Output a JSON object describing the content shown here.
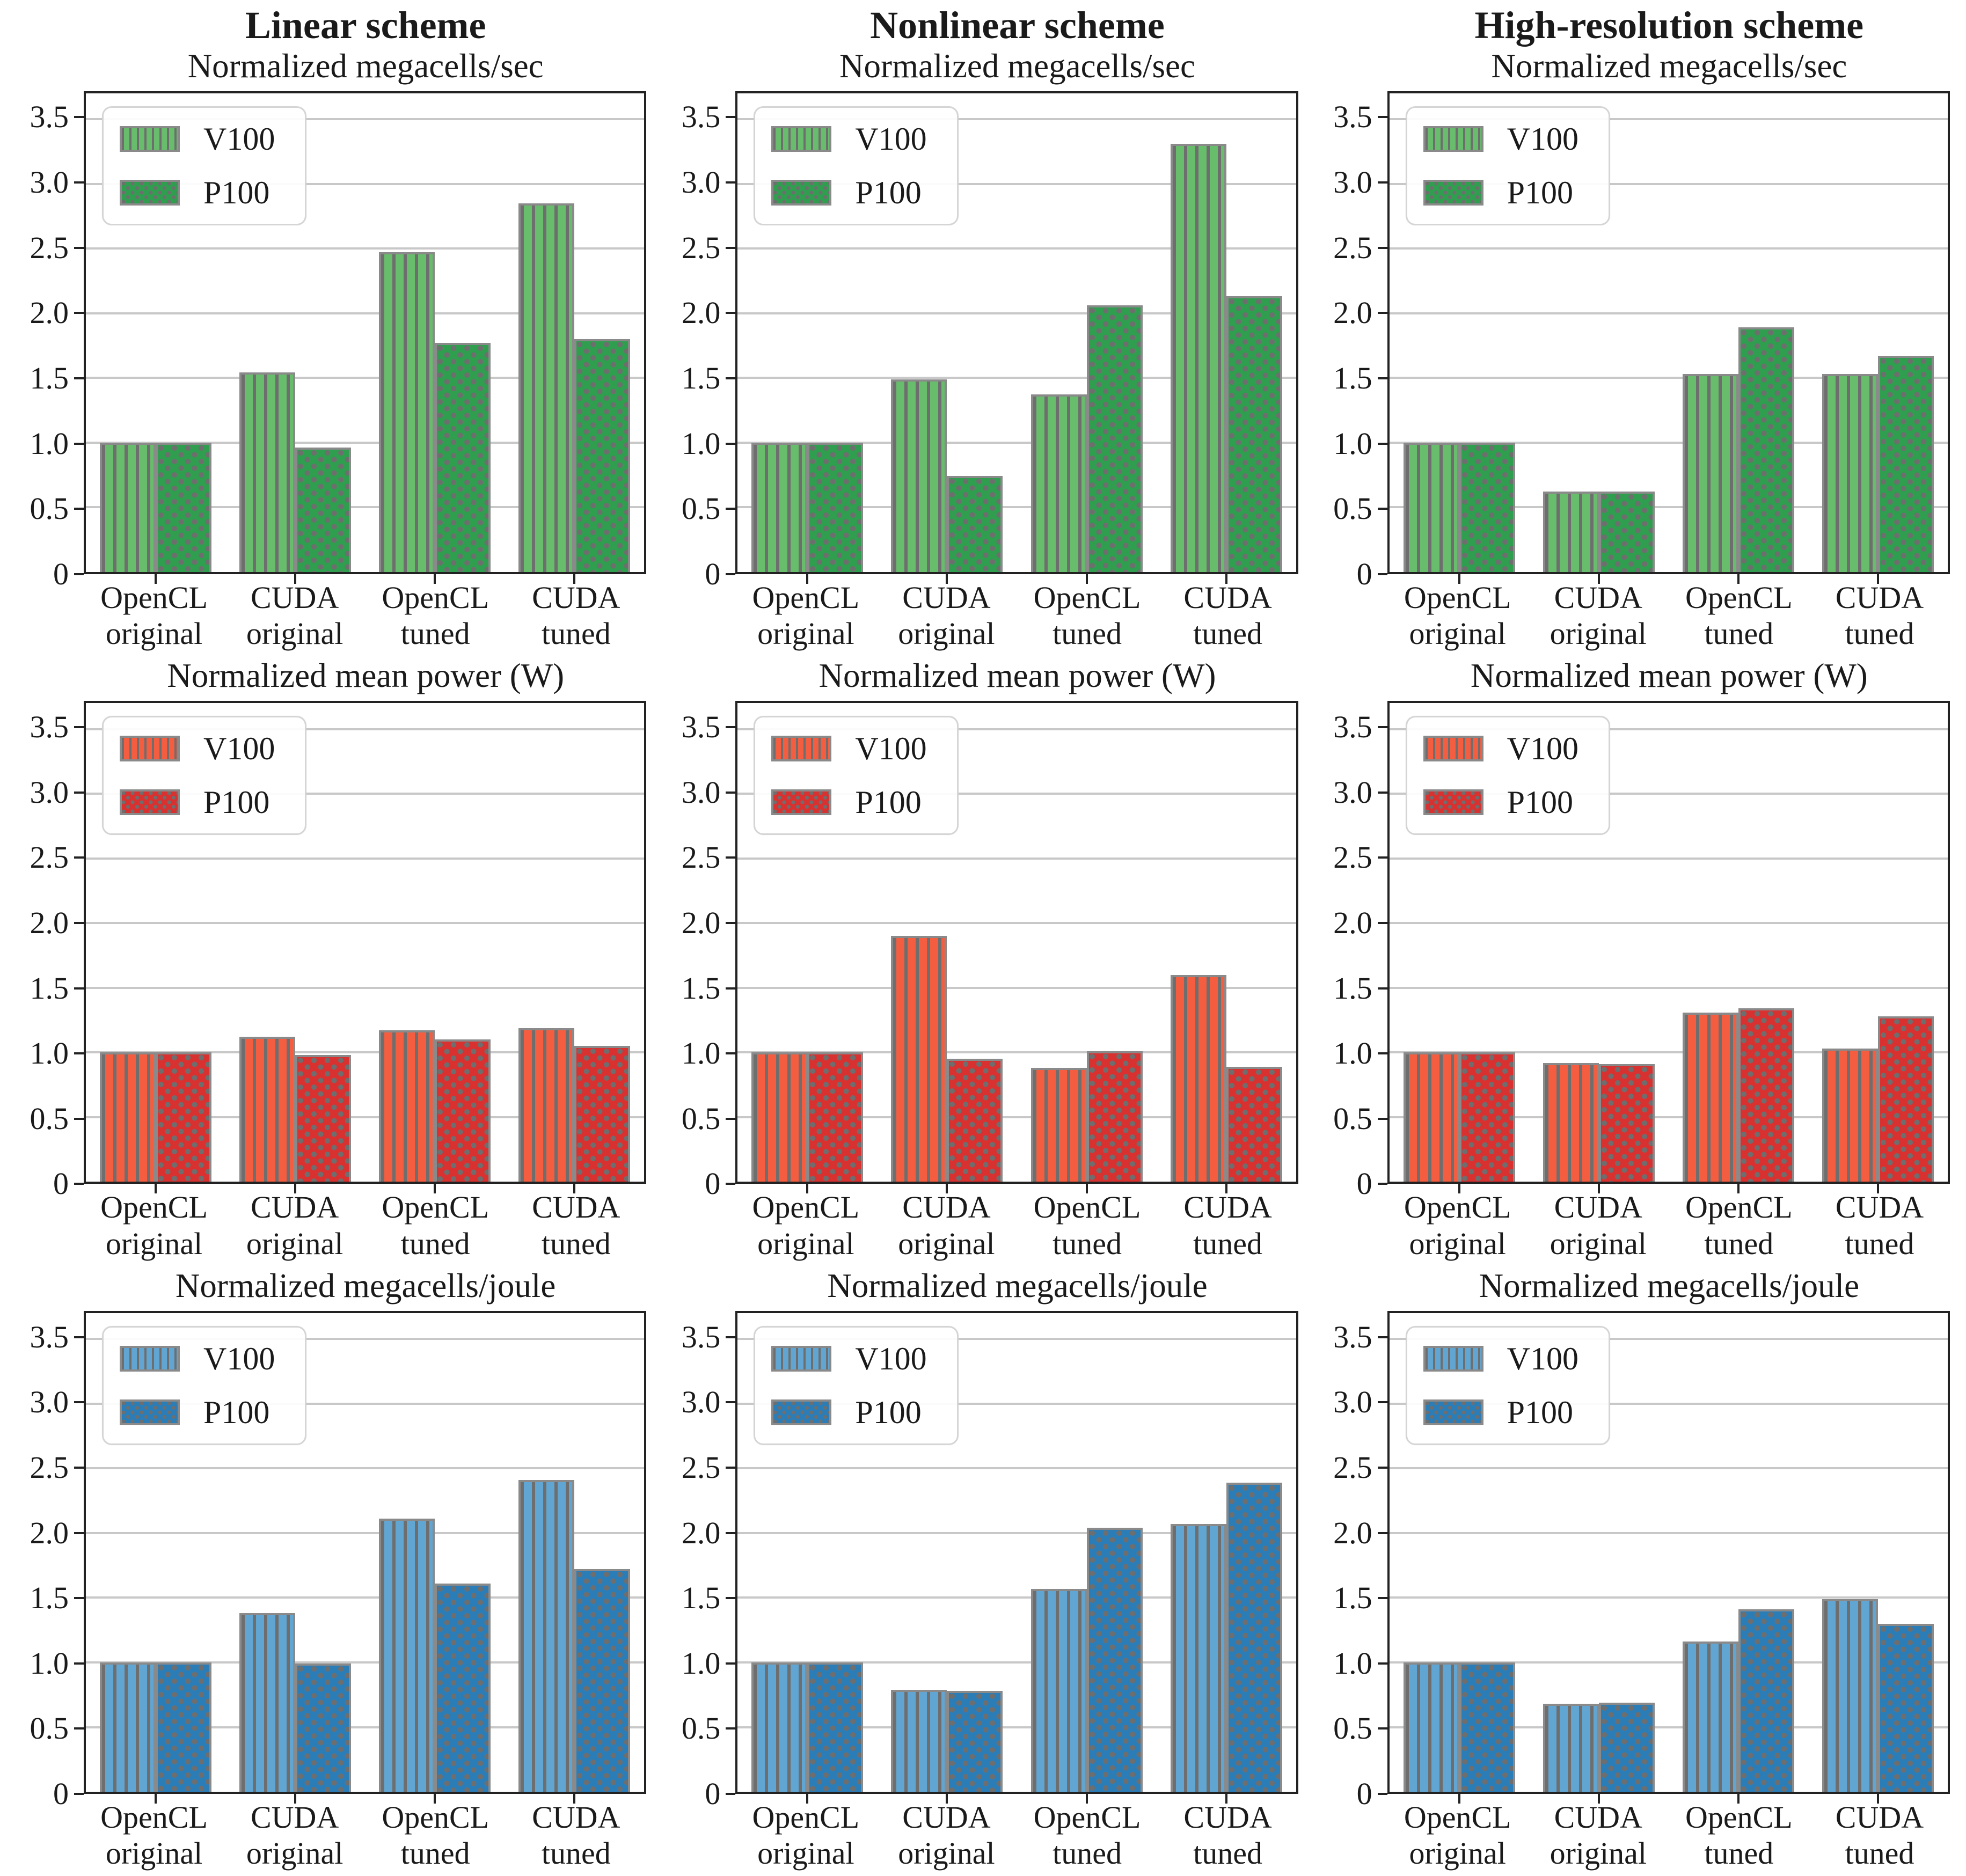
{
  "figure": {
    "columns": [
      "Linear scheme",
      "Nonlinear scheme",
      "High-resolution scheme"
    ],
    "rows": [
      "Normalized megacells/sec",
      "Normalized mean power (W)",
      "Normalized megacells/joule"
    ]
  },
  "legend": {
    "items": [
      "V100",
      "P100"
    ]
  },
  "axes": {
    "ymax": 3.7,
    "yticks": [
      {
        "label": "0",
        "value": 0
      },
      {
        "label": "0.5",
        "value": 0.5
      },
      {
        "label": "1.0",
        "value": 1.0
      },
      {
        "label": "1.5",
        "value": 1.5
      },
      {
        "label": "2.0",
        "value": 2.0
      },
      {
        "label": "2.5",
        "value": 2.5
      },
      {
        "label": "3.0",
        "value": 3.0
      },
      {
        "label": "3.5",
        "value": 3.5
      }
    ],
    "gridlines": [
      0.5,
      1.0,
      1.5,
      2.0,
      2.5,
      3.0,
      3.5
    ],
    "category_lines": [
      [
        "OpenCL",
        "original"
      ],
      [
        "CUDA",
        "original"
      ],
      [
        "OpenCL",
        "tuned"
      ],
      [
        "CUDA",
        "tuned"
      ]
    ]
  },
  "colors": {
    "green_v100": "#67bd6b",
    "green_p100": "#2f9e4f",
    "red_v100": "#f45d40",
    "red_p100": "#d93030",
    "blue_v100": "#61a6d3",
    "blue_p100": "#2b7db8",
    "hatch": "#6e6e6e",
    "bar_edge": "#8a8a8a",
    "grid": "#c8c8c8",
    "spine": "#222222",
    "legend_border": "#d5d5d5",
    "text": "#1a1a1a"
  },
  "chart_data": [
    {
      "type": "bar",
      "scheme_title": "Linear scheme",
      "title": "Normalized megacells/sec",
      "categories": [
        "OpenCL original",
        "CUDA original",
        "OpenCL tuned",
        "CUDA tuned"
      ],
      "series": [
        {
          "name": "V100",
          "color_key": "green_v100",
          "values": [
            1.0,
            1.54,
            2.47,
            2.85
          ]
        },
        {
          "name": "P100",
          "color_key": "green_p100",
          "values": [
            1.0,
            0.96,
            1.77,
            1.8
          ]
        }
      ],
      "ylim": [
        0,
        3.7
      ],
      "legend_position": "upper left",
      "grid": true
    },
    {
      "type": "bar",
      "scheme_title": "Nonlinear scheme",
      "title": "Normalized megacells/sec",
      "categories": [
        "OpenCL original",
        "CUDA original",
        "OpenCL tuned",
        "CUDA tuned"
      ],
      "series": [
        {
          "name": "V100",
          "color_key": "green_v100",
          "values": [
            1.0,
            1.49,
            1.37,
            3.31
          ]
        },
        {
          "name": "P100",
          "color_key": "green_p100",
          "values": [
            1.0,
            0.74,
            2.06,
            2.13
          ]
        }
      ],
      "ylim": [
        0,
        3.7
      ],
      "legend_position": "upper left",
      "grid": true
    },
    {
      "type": "bar",
      "scheme_title": "High-resolution scheme",
      "title": "Normalized megacells/sec",
      "categories": [
        "OpenCL original",
        "CUDA original",
        "OpenCL tuned",
        "CUDA tuned"
      ],
      "series": [
        {
          "name": "V100",
          "color_key": "green_v100",
          "values": [
            1.0,
            0.62,
            1.53,
            1.53
          ]
        },
        {
          "name": "P100",
          "color_key": "green_p100",
          "values": [
            1.0,
            0.62,
            1.89,
            1.67
          ]
        }
      ],
      "ylim": [
        0,
        3.7
      ],
      "legend_position": "upper left",
      "grid": true
    },
    {
      "type": "bar",
      "title": "Normalized mean power (W)",
      "categories": [
        "OpenCL original",
        "CUDA original",
        "OpenCL tuned",
        "CUDA tuned"
      ],
      "series": [
        {
          "name": "V100",
          "color_key": "red_v100",
          "values": [
            1.0,
            1.12,
            1.17,
            1.19
          ]
        },
        {
          "name": "P100",
          "color_key": "red_p100",
          "values": [
            1.0,
            0.98,
            1.1,
            1.05
          ]
        }
      ],
      "ylim": [
        0,
        3.7
      ],
      "legend_position": "upper left",
      "grid": true
    },
    {
      "type": "bar",
      "title": "Normalized mean power (W)",
      "categories": [
        "OpenCL original",
        "CUDA original",
        "OpenCL tuned",
        "CUDA tuned"
      ],
      "series": [
        {
          "name": "V100",
          "color_key": "red_v100",
          "values": [
            1.0,
            1.9,
            0.88,
            1.6
          ]
        },
        {
          "name": "P100",
          "color_key": "red_p100",
          "values": [
            1.0,
            0.95,
            1.01,
            0.89
          ]
        }
      ],
      "ylim": [
        0,
        3.7
      ],
      "legend_position": "upper left",
      "grid": true
    },
    {
      "type": "bar",
      "title": "Normalized mean power (W)",
      "categories": [
        "OpenCL original",
        "CUDA original",
        "OpenCL tuned",
        "CUDA tuned"
      ],
      "series": [
        {
          "name": "V100",
          "color_key": "red_v100",
          "values": [
            1.0,
            0.92,
            1.31,
            1.03
          ]
        },
        {
          "name": "P100",
          "color_key": "red_p100",
          "values": [
            1.0,
            0.91,
            1.34,
            1.28
          ]
        }
      ],
      "ylim": [
        0,
        3.7
      ],
      "legend_position": "upper left",
      "grid": true
    },
    {
      "type": "bar",
      "title": "Normalized megacells/joule",
      "categories": [
        "OpenCL original",
        "CUDA original",
        "OpenCL tuned",
        "CUDA tuned"
      ],
      "series": [
        {
          "name": "V100",
          "color_key": "blue_v100",
          "values": [
            1.0,
            1.38,
            2.11,
            2.41
          ]
        },
        {
          "name": "P100",
          "color_key": "blue_p100",
          "values": [
            1.0,
            0.99,
            1.61,
            1.72
          ]
        }
      ],
      "ylim": [
        0,
        3.7
      ],
      "legend_position": "upper left",
      "grid": true
    },
    {
      "type": "bar",
      "title": "Normalized megacells/joule",
      "categories": [
        "OpenCL original",
        "CUDA original",
        "OpenCL tuned",
        "CUDA tuned"
      ],
      "series": [
        {
          "name": "V100",
          "color_key": "blue_v100",
          "values": [
            1.0,
            0.79,
            1.57,
            2.07
          ]
        },
        {
          "name": "P100",
          "color_key": "blue_p100",
          "values": [
            1.0,
            0.78,
            2.04,
            2.39
          ]
        }
      ],
      "ylim": [
        0,
        3.7
      ],
      "legend_position": "upper left",
      "grid": true
    },
    {
      "type": "bar",
      "title": "Normalized megacells/joule",
      "categories": [
        "OpenCL original",
        "CUDA original",
        "OpenCL tuned",
        "CUDA tuned"
      ],
      "series": [
        {
          "name": "V100",
          "color_key": "blue_v100",
          "values": [
            1.0,
            0.68,
            1.16,
            1.49
          ]
        },
        {
          "name": "P100",
          "color_key": "blue_p100",
          "values": [
            1.0,
            0.69,
            1.41,
            1.3
          ]
        }
      ],
      "ylim": [
        0,
        3.7
      ],
      "legend_position": "upper left",
      "grid": true
    }
  ]
}
